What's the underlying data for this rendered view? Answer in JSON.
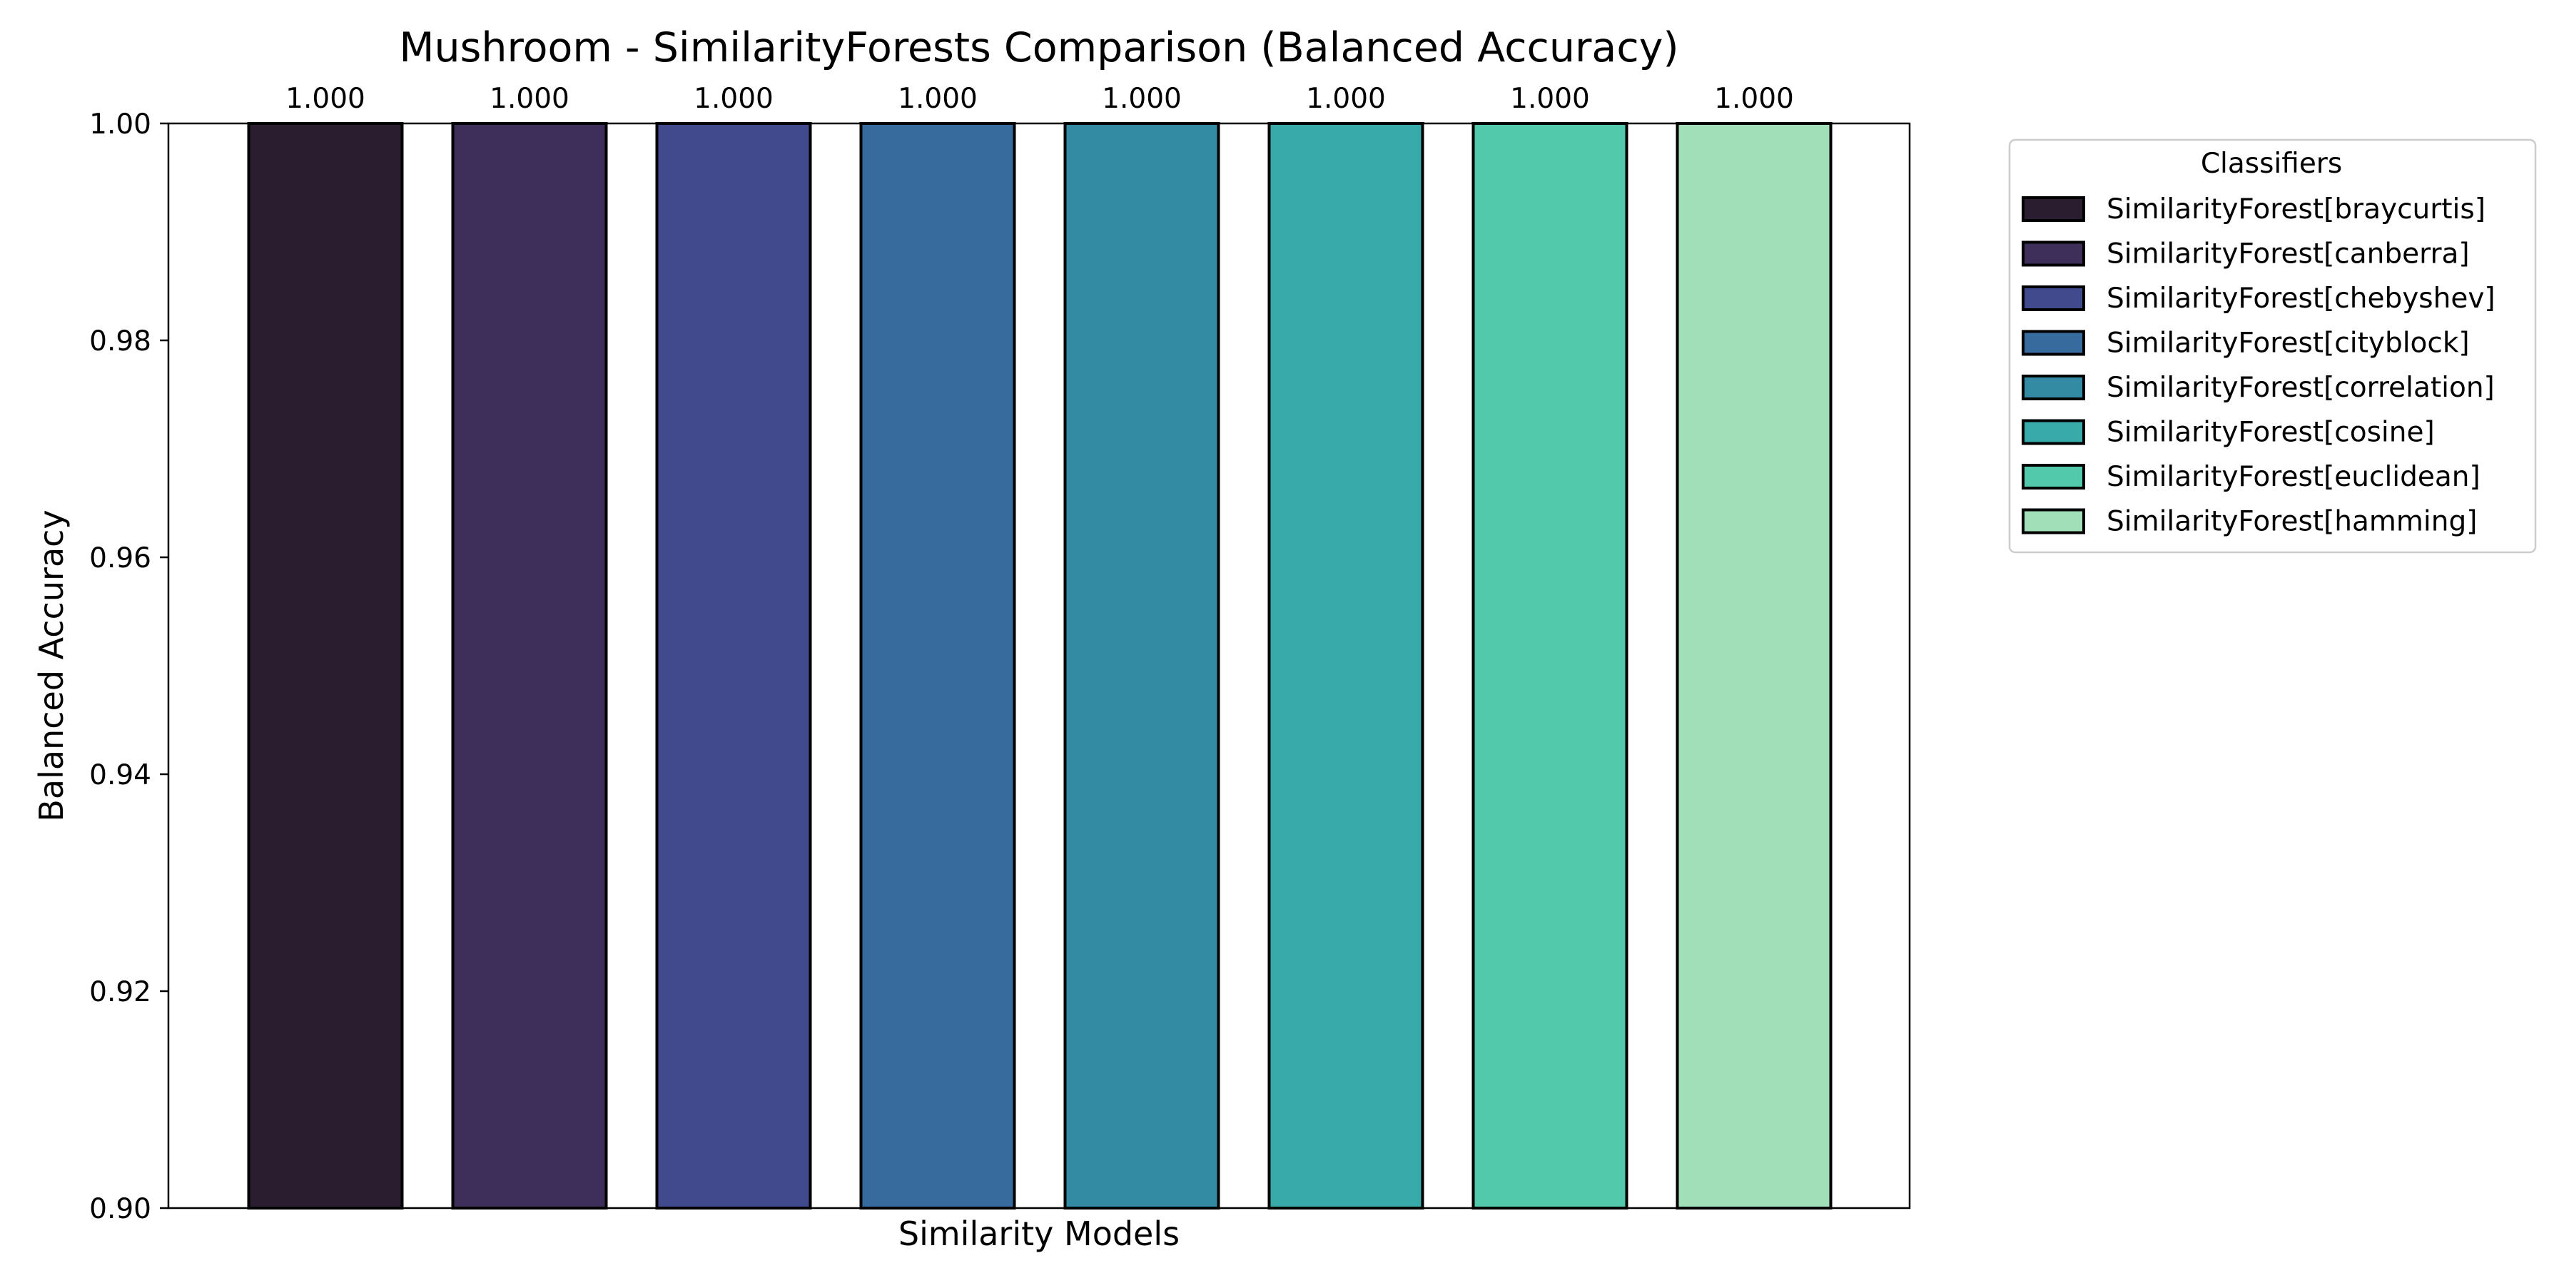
{
  "chart_data": {
    "type": "bar",
    "title": "Mushroom - SimilarityForests Comparison (Balanced Accuracy)",
    "xlabel": "Similarity Models",
    "ylabel": "Balanced Accuracy",
    "ylim": [
      0.9,
      1.0
    ],
    "yticks": [
      0.9,
      0.92,
      0.94,
      0.96,
      0.98,
      1.0
    ],
    "ytick_labels": [
      "0.90",
      "0.92",
      "0.94",
      "0.96",
      "0.98",
      "1.00"
    ],
    "grid": false,
    "bar_edge_color": "#000000",
    "categories": [
      "SimilarityForest[braycurtis]",
      "SimilarityForest[canberra]",
      "SimilarityForest[chebyshev]",
      "SimilarityForest[cityblock]",
      "SimilarityForest[correlation]",
      "SimilarityForest[cosine]",
      "SimilarityForest[euclidean]",
      "SimilarityForest[hamming]"
    ],
    "values": [
      1.0,
      1.0,
      1.0,
      1.0,
      1.0,
      1.0,
      1.0,
      1.0
    ],
    "value_labels": [
      "1.000",
      "1.000",
      "1.000",
      "1.000",
      "1.000",
      "1.000",
      "1.000",
      "1.000"
    ],
    "colors": [
      "#2a1d2f",
      "#3d2f5a",
      "#414a8c",
      "#376b9e",
      "#338aa3",
      "#38aaaa",
      "#52c9ab",
      "#a1dfb8"
    ],
    "legend": {
      "title": "Classifiers",
      "placement": "outside-right",
      "entries": [
        "SimilarityForest[braycurtis]",
        "SimilarityForest[canberra]",
        "SimilarityForest[chebyshev]",
        "SimilarityForest[cityblock]",
        "SimilarityForest[correlation]",
        "SimilarityForest[cosine]",
        "SimilarityForest[euclidean]",
        "SimilarityForest[hamming]"
      ]
    }
  }
}
